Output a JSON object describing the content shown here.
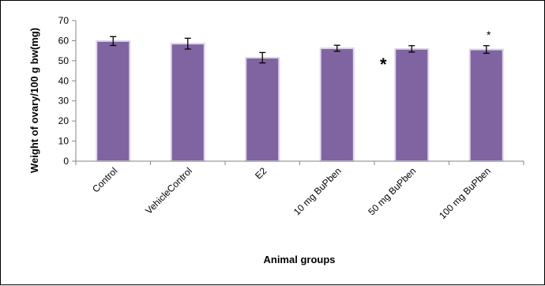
{
  "chart_data": {
    "type": "bar",
    "title": "",
    "xlabel": "Animal groups",
    "ylabel": "Weight of ovary/100 g bw(mg)",
    "ylim": [
      0,
      70
    ],
    "yticks": [
      0,
      10,
      20,
      30,
      40,
      50,
      60,
      70
    ],
    "grid": false,
    "categories": [
      "Control",
      "VehicleControl",
      "E2",
      "10 mg BuPben",
      "50 mg BuPben",
      "100 mg BuPben"
    ],
    "series": [
      {
        "values": [
          59.8,
          58.5,
          51.5,
          56.2,
          55.9,
          55.6
        ],
        "error": [
          2.2,
          2.7,
          2.6,
          1.5,
          1.6,
          1.9
        ]
      }
    ],
    "annotations": [
      {
        "text": "*",
        "category": "10 mg BuPben",
        "position": "right-of-bar"
      },
      {
        "text": "*",
        "category": "100 mg BuPben",
        "position": "above-bar"
      }
    ],
    "colors": {
      "bar": "#8064a2",
      "bar_edge": "#ded5ea",
      "axis": "#868686"
    }
  }
}
